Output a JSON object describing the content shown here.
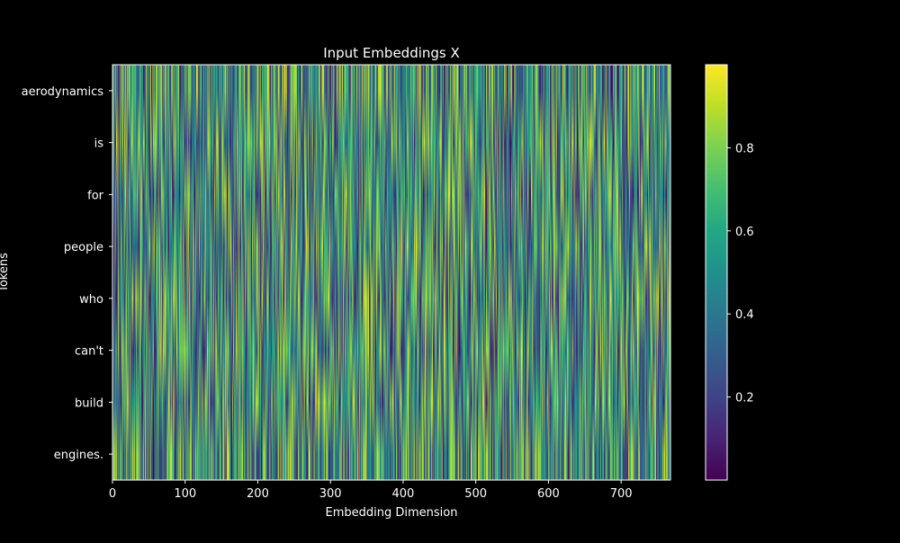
{
  "chart_data": {
    "type": "heatmap",
    "title": "Input Embeddings X",
    "xlabel": "Embedding Dimension",
    "ylabel": "Tokens",
    "rows": [
      "aerodynamics",
      "is",
      "for",
      "people",
      "who",
      "can't",
      "build",
      "engines."
    ],
    "x_range": [
      0,
      768
    ],
    "x_ticks": [
      "0",
      "100",
      "200",
      "300",
      "400",
      "500",
      "600",
      "700"
    ],
    "x_tick_values": [
      0,
      100,
      200,
      300,
      400,
      500,
      600,
      700
    ],
    "colorbar": {
      "colormap": "viridis",
      "range": [
        0.0,
        1.0
      ],
      "ticks": [
        "0.2",
        "0.4",
        "0.6",
        "0.8"
      ],
      "tick_values": [
        0.2,
        0.4,
        0.6,
        0.8
      ]
    },
    "value_distribution": "random uniform values in [0, 1] per token and dimension, smoothly interpolated between token rows",
    "grid": false
  },
  "colors": {
    "background": "#000000",
    "text": "#ffffff",
    "axes": "#ffffff"
  }
}
